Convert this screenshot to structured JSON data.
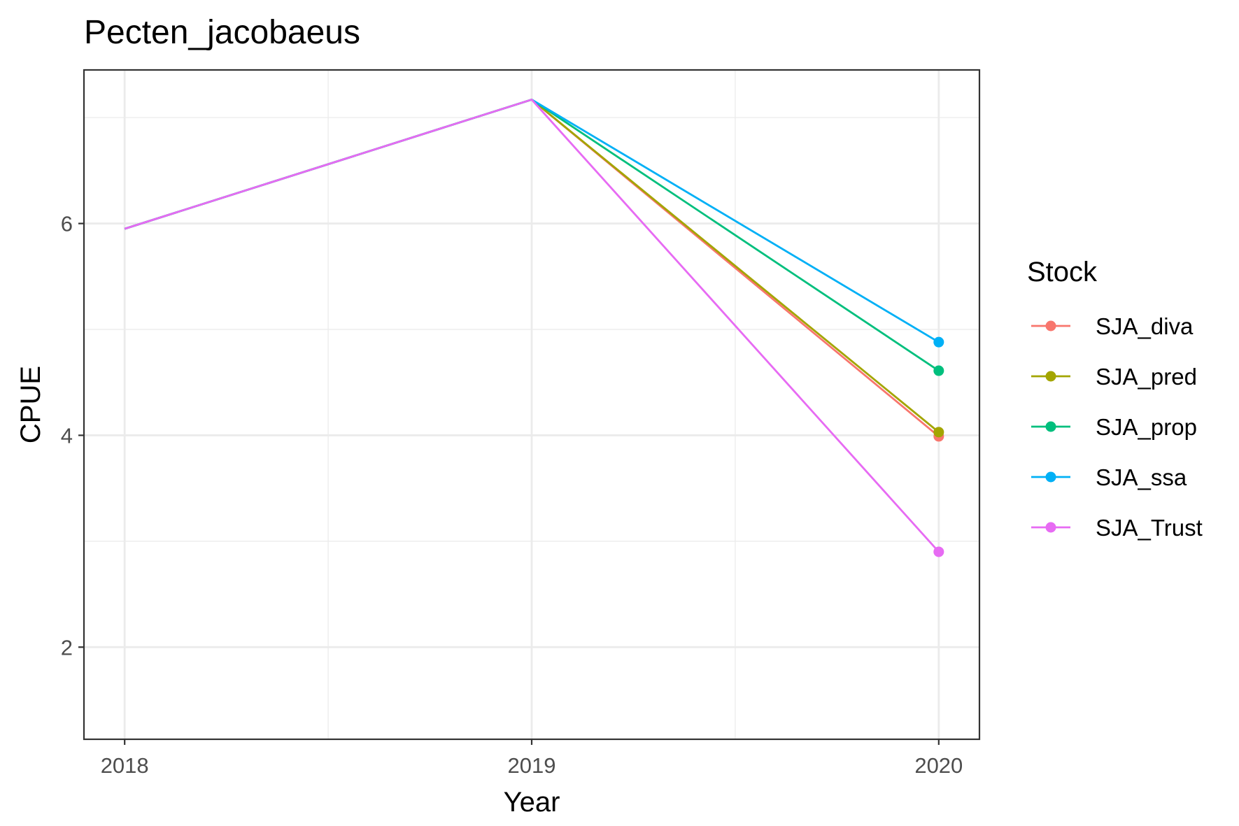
{
  "chart_data": {
    "type": "line",
    "title": "Pecten_jacobaeus",
    "xlabel": "Year",
    "ylabel": "CPUE",
    "x": [
      2018,
      2019,
      2020
    ],
    "x_ticks": [
      "2018",
      "2019",
      "2020"
    ],
    "y_ticks": [
      "2",
      "4",
      "6"
    ],
    "xlim": [
      2017.9,
      2020.1
    ],
    "ylim": [
      1.13,
      7.45
    ],
    "grid": true,
    "legend": {
      "title": "Stock",
      "placement": "right"
    },
    "series": [
      {
        "name": "SJA_diva",
        "color": "#F8766D",
        "values": [
          5.95,
          7.17,
          3.99
        ]
      },
      {
        "name": "SJA_pred",
        "color": "#A3A500",
        "values": [
          5.95,
          7.17,
          4.03
        ]
      },
      {
        "name": "SJA_prop",
        "color": "#00BF7D",
        "values": [
          5.95,
          7.17,
          4.61
        ]
      },
      {
        "name": "SJA_ssa",
        "color": "#00B0F6",
        "values": [
          5.95,
          7.17,
          4.88
        ]
      },
      {
        "name": "SJA_Trust",
        "color": "#E76BF3",
        "values": [
          5.95,
          7.17,
          2.9
        ]
      }
    ],
    "markers_at": [
      2020
    ]
  }
}
